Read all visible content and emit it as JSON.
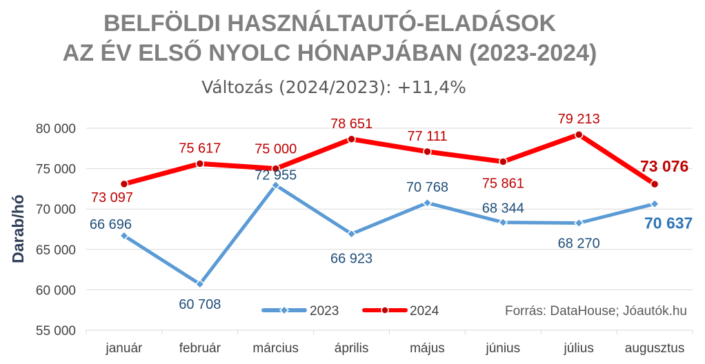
{
  "chart_data": {
    "type": "line",
    "title_line1": "BELFÖLDI HASZNÁLTAUTÓ-ELADÁSOK",
    "title_line2": "AZ ÉV ELSŐ NYOLC HÓNAPJÁBAN (2023-2024)",
    "subtitle": "Változás (2024/2023): +11,4%",
    "ylabel": "Darab/hó",
    "ylim": [
      55000,
      80000
    ],
    "yticks": [
      55000,
      60000,
      65000,
      70000,
      75000,
      80000
    ],
    "ytick_labels": [
      "55 000",
      "60 000",
      "65 000",
      "70 000",
      "75 000",
      "80 000"
    ],
    "categories": [
      "január",
      "február",
      "március",
      "április",
      "május",
      "június",
      "július",
      "augusztus"
    ],
    "series": [
      {
        "name": "2023",
        "color": "#5b9bd5",
        "values": [
          66696,
          60708,
          72955,
          66923,
          70768,
          68344,
          68270,
          70637
        ],
        "labels": [
          "66 696",
          "60 708",
          "72 955",
          "66 923",
          "70 768",
          "68 344",
          "68 270",
          "70 637"
        ]
      },
      {
        "name": "2024",
        "color": "#ff0000",
        "values": [
          73097,
          75617,
          75000,
          78651,
          77111,
          75861,
          79213,
          73076
        ],
        "labels": [
          "73 097",
          "75 617",
          "75 000",
          "78 651",
          "77 111",
          "75 861",
          "79 213",
          "73 076"
        ]
      }
    ],
    "source": "Forrás: DataHouse; Jóautók.hu",
    "grid": true,
    "legend_position": "bottom-center"
  }
}
